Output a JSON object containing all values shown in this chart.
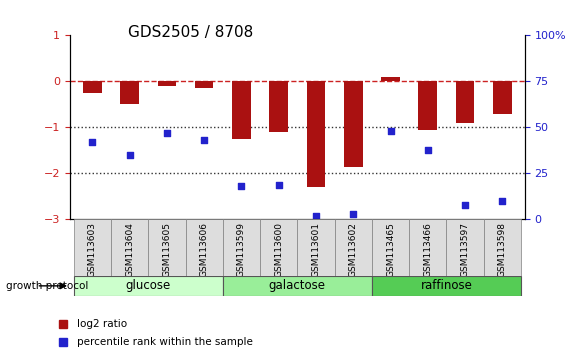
{
  "title": "GDS2505 / 8708",
  "samples": [
    "GSM113603",
    "GSM113604",
    "GSM113605",
    "GSM113606",
    "GSM113599",
    "GSM113600",
    "GSM113601",
    "GSM113602",
    "GSM113465",
    "GSM113466",
    "GSM113597",
    "GSM113598"
  ],
  "log2_ratio": [
    -0.25,
    -0.5,
    -0.1,
    -0.15,
    -1.25,
    -1.1,
    -2.3,
    -1.85,
    0.1,
    -1.05,
    -0.9,
    -0.7
  ],
  "percentile_rank": [
    42,
    35,
    47,
    43,
    18,
    19,
    2,
    3,
    48,
    38,
    8,
    10
  ],
  "groups": [
    {
      "name": "glucose",
      "start": 0,
      "end": 4,
      "color": "#ccffcc"
    },
    {
      "name": "galactose",
      "start": 4,
      "end": 8,
      "color": "#99ee99"
    },
    {
      "name": "raffinose",
      "start": 8,
      "end": 12,
      "color": "#55cc55"
    }
  ],
  "bar_color": "#aa1111",
  "dot_color": "#2222cc",
  "dashed_line_color": "#cc2222",
  "ylim_left": [
    -3,
    1
  ],
  "ylim_right": [
    0,
    100
  ],
  "yticks_left": [
    1,
    0,
    -1,
    -2,
    -3
  ],
  "yticks_right": [
    0,
    25,
    50,
    75,
    100
  ],
  "hlines": [
    0,
    -1,
    -2
  ],
  "hline_styles": [
    "dashed",
    "dotted",
    "dotted"
  ],
  "title_fontsize": 11,
  "legend_red": "log2 ratio",
  "legend_blue": "percentile rank within the sample"
}
